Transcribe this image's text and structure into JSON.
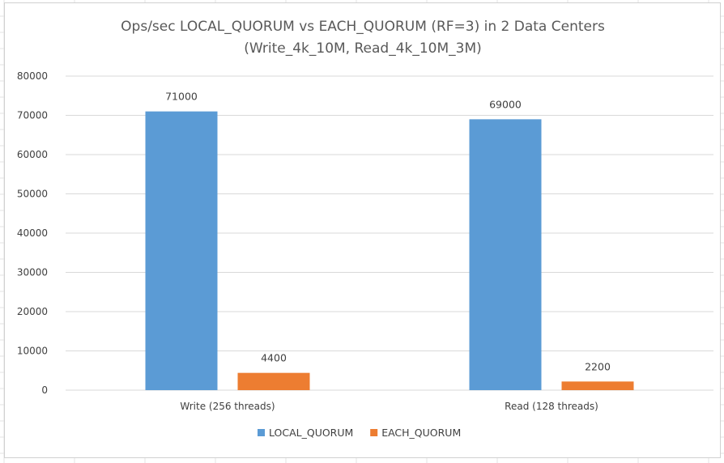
{
  "chart_data": {
    "type": "bar",
    "title": "Ops/sec LOCAL_QUORUM vs EACH_QUORUM (RF=3) in 2 Data Centers",
    "subtitle": "(Write_4k_10M, Read_4k_10M_3M)",
    "xlabel": "",
    "ylabel": "",
    "categories": [
      "Write (256 threads)",
      "Read (128 threads)"
    ],
    "series": [
      {
        "name": "LOCAL_QUORUM",
        "values": [
          71000,
          69000
        ],
        "color": "#5b9bd5"
      },
      {
        "name": "EACH_QUORUM",
        "values": [
          4400,
          2200
        ],
        "color": "#ed7d31"
      }
    ],
    "ylim": [
      0,
      80000
    ],
    "yticks": [
      0,
      10000,
      20000,
      30000,
      40000,
      50000,
      60000,
      70000,
      80000
    ],
    "grid": true,
    "legend": "bottom",
    "data_labels": true
  }
}
